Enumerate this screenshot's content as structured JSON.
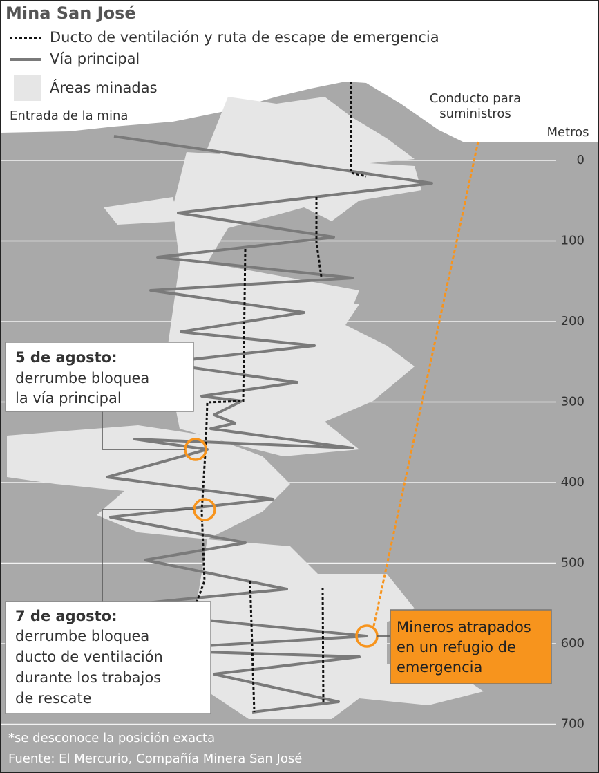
{
  "title": "Mina San José",
  "legend": [
    "Ducto de ventilación y ruta de escape de emergencia",
    "Vía principal",
    "Áreas minadas"
  ],
  "labels": {
    "entrance": "Entrada de la mina",
    "supply": [
      "Conducto para",
      "suministros"
    ]
  },
  "depth_axis": {
    "label": "Metros",
    "ticks": [
      0,
      100,
      200,
      300,
      400,
      500,
      600,
      700
    ]
  },
  "callouts": [
    {
      "date": "5 de agosto:",
      "lines": [
        "derrumbe bloquea",
        "la vía principal"
      ]
    },
    {
      "date": "7 de agosto:",
      "lines": [
        "derrumbe bloquea",
        "ducto de ventilación",
        "durante los trabajos",
        "de rescate"
      ]
    }
  ],
  "refuge": [
    "Mineros atrapados",
    "en un refugio de",
    "emergencia"
  ],
  "notes": [
    "*se desconoce la posición exacta",
    "Fuente: El Mercurio, Compañía Minera San José"
  ]
}
